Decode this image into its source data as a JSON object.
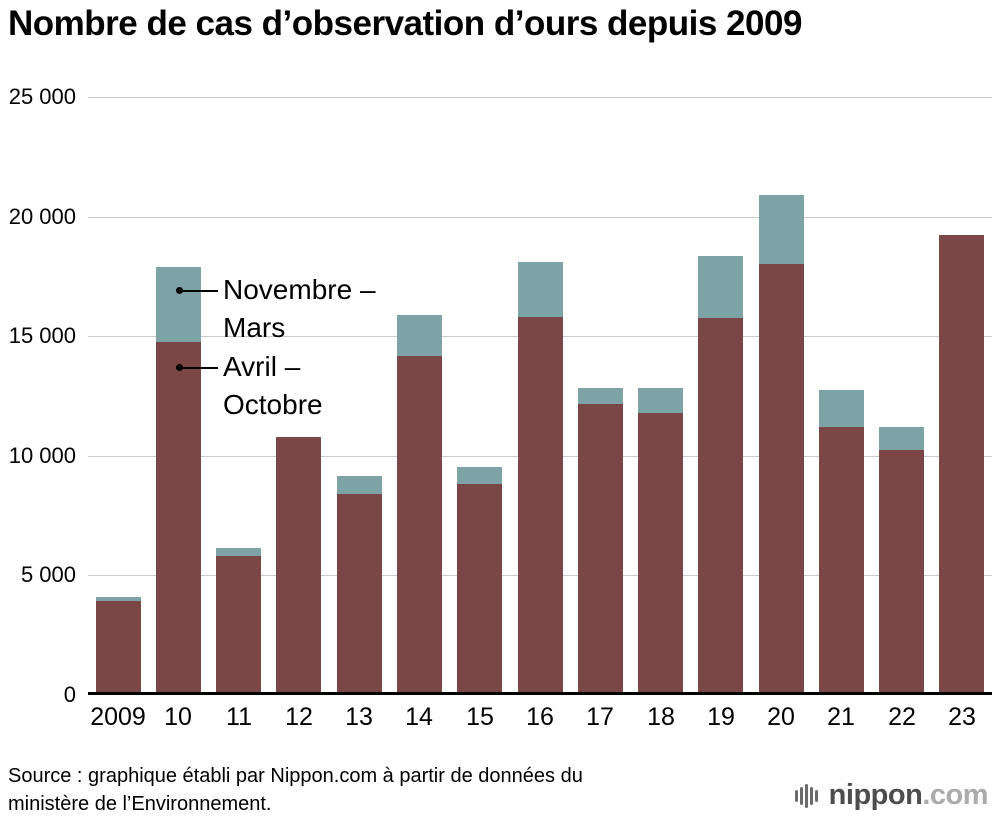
{
  "title": "Nombre de cas d’observation d’ours depuis 2009",
  "chart_data": {
    "type": "bar",
    "stacked": true,
    "title": "Nombre de cas d’observation d’ours depuis 2009",
    "categories": [
      "2009",
      "10",
      "11",
      "12",
      "13",
      "14",
      "15",
      "16",
      "17",
      "18",
      "19",
      "20",
      "21",
      "22",
      "23"
    ],
    "series": [
      {
        "name": "Avril – Octobre",
        "color": "#7b4646",
        "values": [
          3950,
          14750,
          5800,
          10800,
          8400,
          14200,
          8850,
          15800,
          12200,
          11800,
          15750,
          18000,
          11200,
          10250,
          19250
        ]
      },
      {
        "name": "Novembre – Mars",
        "color": "#7ea3a6",
        "values": [
          150,
          3150,
          350,
          0,
          750,
          1700,
          700,
          2300,
          650,
          1050,
          2600,
          2900,
          1550,
          950,
          0
        ]
      }
    ],
    "ylim": [
      0,
      25000
    ],
    "ytick_values": [
      0,
      5000,
      10000,
      15000,
      20000,
      25000
    ],
    "ytick_labels": [
      "0",
      "5 000",
      "10 000",
      "15 000",
      "20 000",
      "25 000"
    ],
    "grid": true,
    "legend": "inline-annotations",
    "xlabel": "",
    "ylabel": ""
  },
  "annotations": {
    "nov_mars": {
      "line1": "Novembre –",
      "line2": "Mars"
    },
    "avr_oct": {
      "line1": "Avril –",
      "line2": "Octobre"
    }
  },
  "source": {
    "line1": "Source : graphique établi par Nippon.com à partir de données du",
    "line2": "ministère de l’Environnement."
  },
  "logo": {
    "icon": "waveform-icon",
    "brand": "nippon",
    "tld": ".com"
  }
}
